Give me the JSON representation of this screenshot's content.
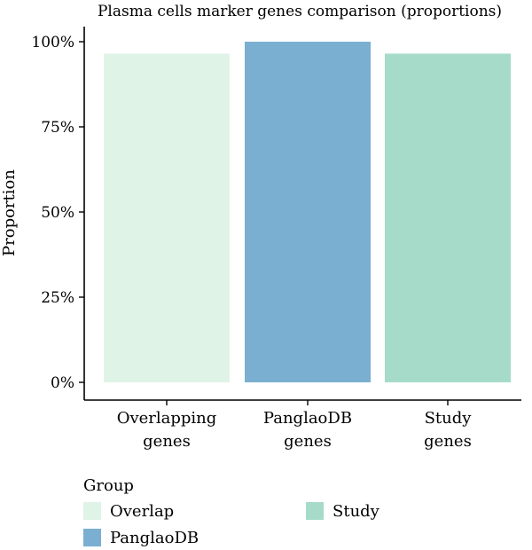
{
  "chart_data": {
    "type": "bar",
    "title": "Plasma cells marker genes comparison (proportions)",
    "ylabel": "Proportion",
    "xlabel": "",
    "ylim": [
      0,
      1
    ],
    "y_ticks": [
      {
        "value": 0,
        "label": "0%"
      },
      {
        "value": 0.25,
        "label": "25%"
      },
      {
        "value": 0.5,
        "label": "50%"
      },
      {
        "value": 0.75,
        "label": "75%"
      },
      {
        "value": 1,
        "label": "100%"
      }
    ],
    "categories": [
      {
        "line1": "Overlapping",
        "line2": "genes"
      },
      {
        "line1": "PanglaoDB",
        "line2": "genes"
      },
      {
        "line1": "Study",
        "line2": "genes"
      }
    ],
    "values": [
      0.965,
      1.0,
      0.965
    ],
    "colors": [
      "#e0f3e7",
      "#7bafd1",
      "#a6dbc9"
    ],
    "grid": false,
    "legend": {
      "title": "Group",
      "placement": "bottom-left",
      "items": [
        {
          "label": "Overlap",
          "color": "#e0f3e7"
        },
        {
          "label": "PanglaoDB",
          "color": "#7bafd1"
        },
        {
          "label": "Study",
          "color": "#a6dbc9"
        }
      ]
    }
  }
}
